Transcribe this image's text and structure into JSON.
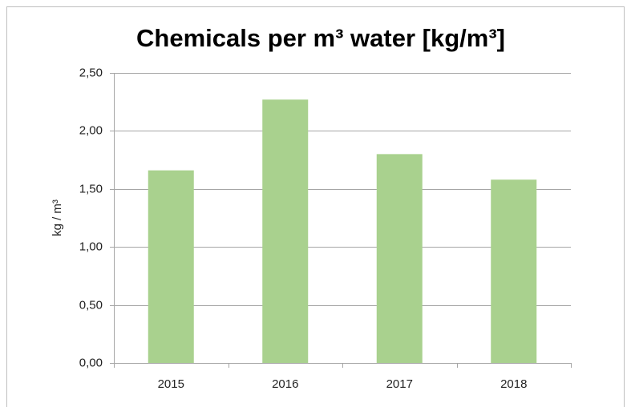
{
  "chart_data": {
    "type": "bar",
    "title": "Chemicals per m³ water [kg/m³]",
    "y_label": "kg / m³",
    "categories": [
      "2015",
      "2016",
      "2017",
      "2018"
    ],
    "values": [
      1.66,
      2.27,
      1.8,
      1.58
    ],
    "color": "#a9d18e",
    "ylim": [
      0,
      2.5
    ],
    "yticks": [
      {
        "value": 0,
        "label": "0,00"
      },
      {
        "value": 0.5,
        "label": "0,50"
      },
      {
        "value": 1,
        "label": "1,00"
      },
      {
        "value": 1.5,
        "label": "1,50"
      },
      {
        "value": 2,
        "label": "2,00"
      },
      {
        "value": 2.5,
        "label": "2,50"
      }
    ],
    "grid": true
  }
}
